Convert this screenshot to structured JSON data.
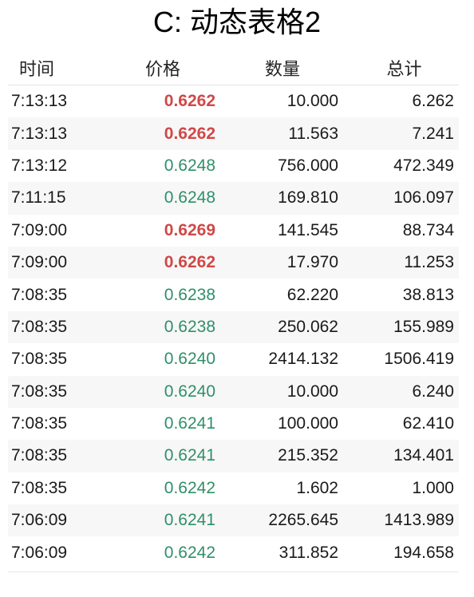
{
  "title": "C: 动态表格2",
  "headers": {
    "time": "时间",
    "price": "价格",
    "quantity": "数量",
    "total": "总计"
  },
  "colors": {
    "up": "#d04848",
    "down": "#2f8f6a"
  },
  "rows": [
    {
      "time": "7:13:13",
      "price": "0.6262",
      "direction": "up",
      "quantity": "10.000",
      "total": "6.262"
    },
    {
      "time": "7:13:13",
      "price": "0.6262",
      "direction": "up",
      "quantity": "11.563",
      "total": "7.241"
    },
    {
      "time": "7:13:12",
      "price": "0.6248",
      "direction": "down",
      "quantity": "756.000",
      "total": "472.349"
    },
    {
      "time": "7:11:15",
      "price": "0.6248",
      "direction": "down",
      "quantity": "169.810",
      "total": "106.097"
    },
    {
      "time": "7:09:00",
      "price": "0.6269",
      "direction": "up",
      "quantity": "141.545",
      "total": "88.734"
    },
    {
      "time": "7:09:00",
      "price": "0.6262",
      "direction": "up",
      "quantity": "17.970",
      "total": "11.253"
    },
    {
      "time": "7:08:35",
      "price": "0.6238",
      "direction": "down",
      "quantity": "62.220",
      "total": "38.813"
    },
    {
      "time": "7:08:35",
      "price": "0.6238",
      "direction": "down",
      "quantity": "250.062",
      "total": "155.989"
    },
    {
      "time": "7:08:35",
      "price": "0.6240",
      "direction": "down",
      "quantity": "2414.132",
      "total": "1506.419"
    },
    {
      "time": "7:08:35",
      "price": "0.6240",
      "direction": "down",
      "quantity": "10.000",
      "total": "6.240"
    },
    {
      "time": "7:08:35",
      "price": "0.6241",
      "direction": "down",
      "quantity": "100.000",
      "total": "62.410"
    },
    {
      "time": "7:08:35",
      "price": "0.6241",
      "direction": "down",
      "quantity": "215.352",
      "total": "134.401"
    },
    {
      "time": "7:08:35",
      "price": "0.6242",
      "direction": "down",
      "quantity": "1.602",
      "total": "1.000"
    },
    {
      "time": "7:06:09",
      "price": "0.6241",
      "direction": "down",
      "quantity": "2265.645",
      "total": "1413.989"
    },
    {
      "time": "7:06:09",
      "price": "0.6242",
      "direction": "down",
      "quantity": "311.852",
      "total": "194.658"
    }
  ]
}
